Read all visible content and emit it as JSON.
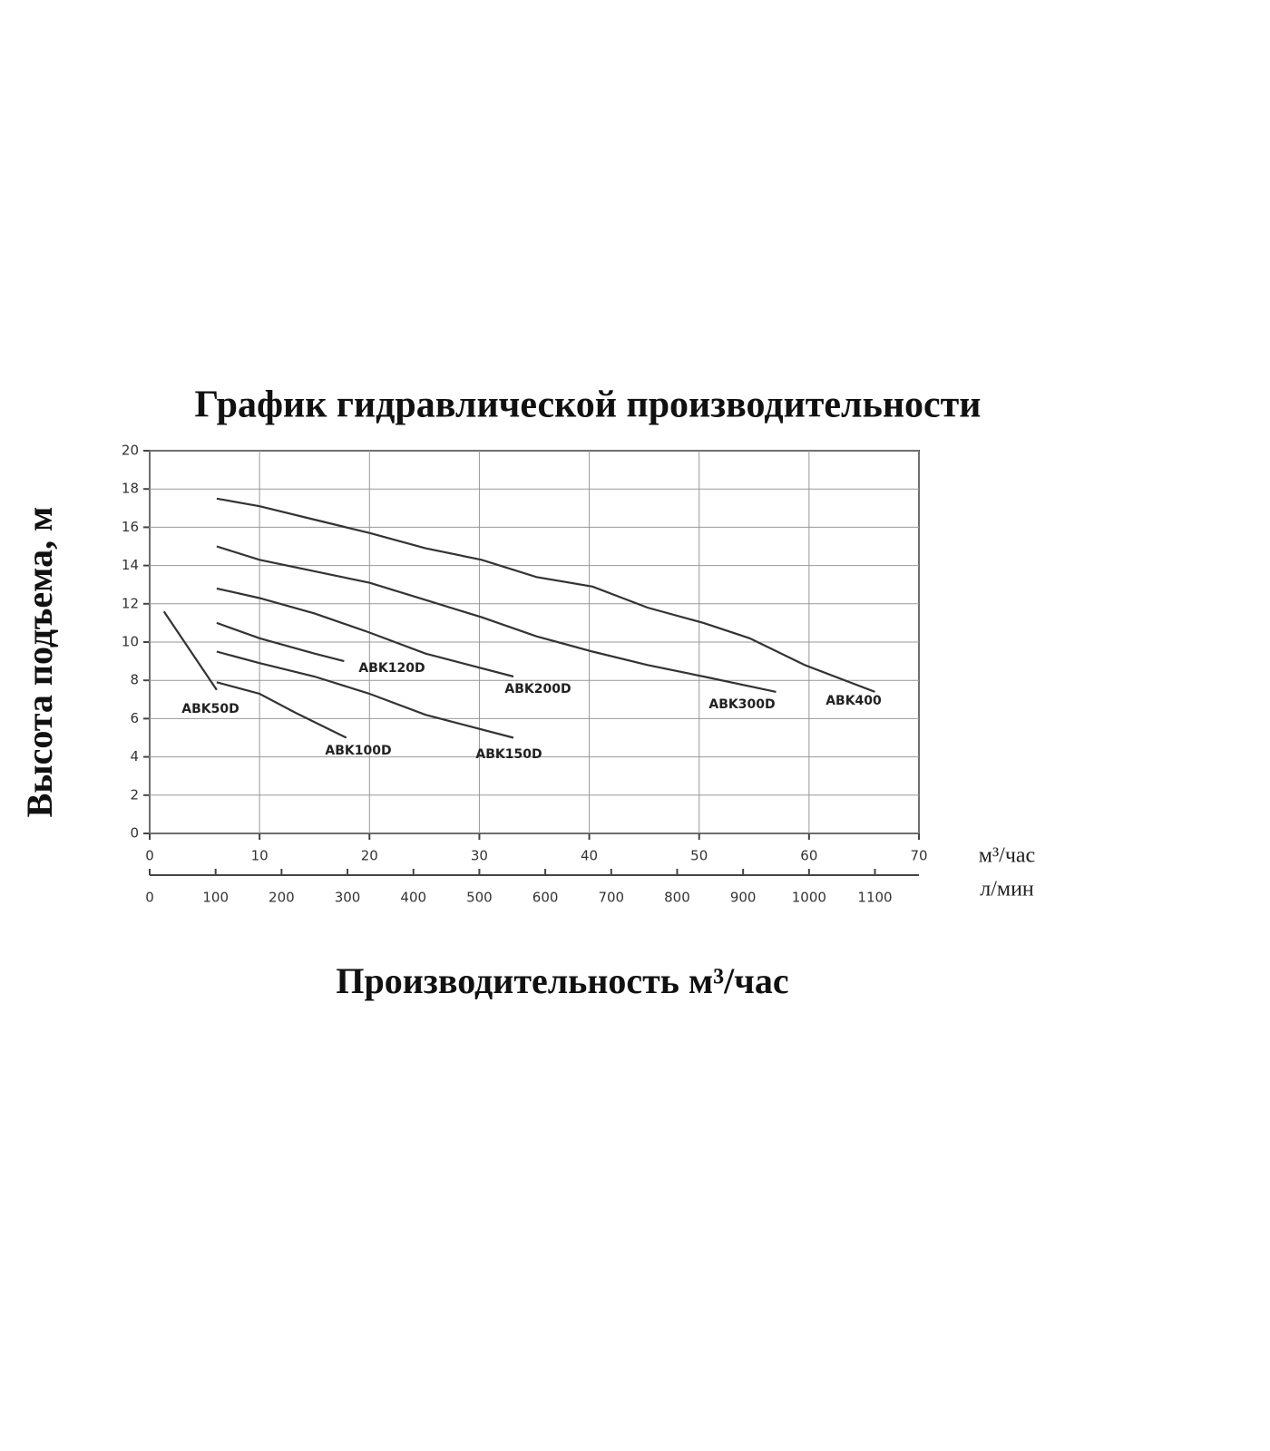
{
  "chart_data": {
    "type": "line",
    "title": "График гидравлической производительности",
    "y_label": "Высота подъема, м",
    "x_label": "Производительность  м³/час",
    "x_unit": "м³/час",
    "x2_unit": "л/мин",
    "color": "#333333",
    "grid": true,
    "xlim": [
      0,
      70
    ],
    "xticks": [
      0,
      10,
      20,
      30,
      40,
      50,
      60,
      70
    ],
    "x2lim": [
      0,
      1166.7
    ],
    "x2ticks": [
      0,
      100,
      200,
      300,
      400,
      500,
      600,
      700,
      800,
      900,
      1000,
      1100
    ],
    "ylim": [
      0,
      20
    ],
    "yticks": [
      0,
      2,
      4,
      6,
      8,
      10,
      12,
      14,
      16,
      18,
      20
    ],
    "series": [
      {
        "name": "ABK50D",
        "x": [
          1.3,
          6.1
        ],
        "values": [
          11.6,
          7.5
        ]
      },
      {
        "name": "ABK100D",
        "x": [
          6.1,
          10,
          13.3,
          17.9
        ],
        "values": [
          7.9,
          7.3,
          6.3,
          5.0
        ]
      },
      {
        "name": "ABK150D",
        "x": [
          6.1,
          10,
          15,
          20,
          25.1,
          33.1
        ],
        "values": [
          9.5,
          8.9,
          8.2,
          7.3,
          6.2,
          5.0
        ]
      },
      {
        "name": "ABK120D",
        "x": [
          6.1,
          10,
          15,
          17.7
        ],
        "values": [
          11.0,
          10.2,
          9.4,
          9.0
        ]
      },
      {
        "name": "ABK200D",
        "x": [
          6.1,
          10,
          15,
          20,
          25.1,
          33.1
        ],
        "values": [
          12.8,
          12.3,
          11.5,
          10.5,
          9.4,
          8.2
        ]
      },
      {
        "name": "ABK300D",
        "x": [
          6.1,
          10,
          15,
          20,
          25.1,
          30.2,
          35.2,
          40.3,
          45.3,
          50.4,
          57
        ],
        "values": [
          15.0,
          14.3,
          13.7,
          13.1,
          12.2,
          11.3,
          10.3,
          9.5,
          8.8,
          8.2,
          7.4
        ]
      },
      {
        "name": "ABK400",
        "x": [
          6.1,
          10,
          15,
          20,
          25.1,
          30.2,
          35.2,
          40.3,
          45.3,
          50.4,
          54.6,
          59.6,
          66
        ],
        "values": [
          17.5,
          17.1,
          16.4,
          15.7,
          14.9,
          14.3,
          13.4,
          12.9,
          11.8,
          11.0,
          10.2,
          8.8,
          7.4
        ]
      }
    ]
  }
}
